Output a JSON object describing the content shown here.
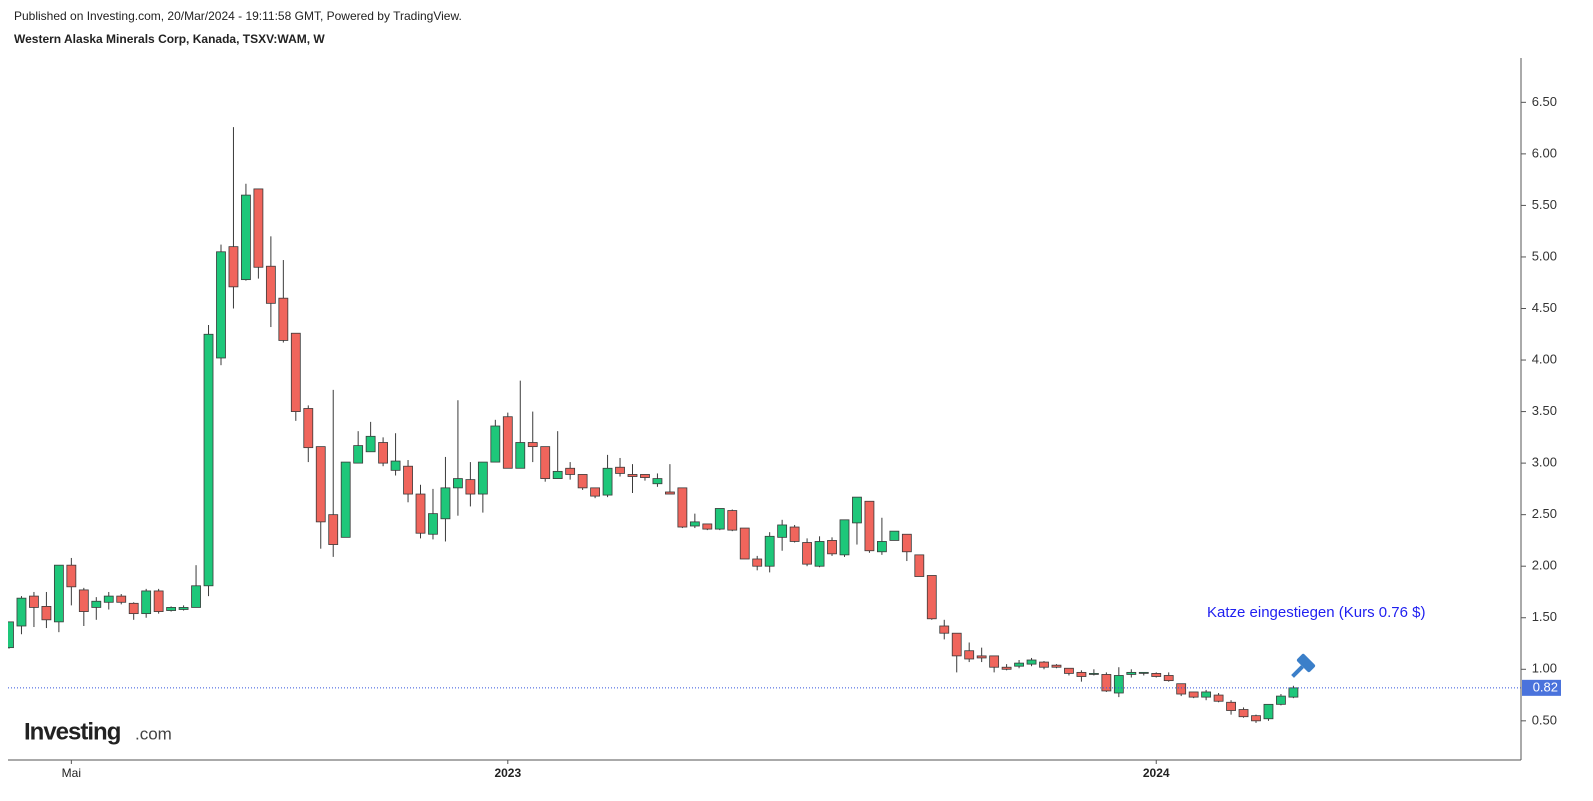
{
  "published": "Published on Investing.com, 20/Mar/2024 - 19:11:58 GMT, Powered by TradingView.",
  "logo": {
    "name": "Investing",
    "suffix": ".com"
  },
  "chart_data": {
    "type": "candlestick",
    "title": "Western Alaska Minerals Corp, Kanada, TSXV:WAM, W",
    "categories": [
      null,
      null,
      null,
      null,
      null,
      "Mai",
      null,
      null,
      null,
      null,
      null,
      null,
      null,
      null,
      null,
      null,
      null,
      null,
      null,
      null,
      null,
      null,
      null,
      null,
      null,
      null,
      null,
      null,
      null,
      null,
      null,
      null,
      null,
      null,
      null,
      null,
      null,
      null,
      null,
      null,
      "2023",
      null,
      null,
      null,
      null,
      null,
      null,
      null,
      null,
      null,
      null,
      null,
      null,
      null,
      null,
      null,
      null,
      null,
      null,
      null,
      null,
      null,
      null,
      null,
      null,
      null,
      null,
      null,
      null,
      null,
      null,
      null,
      null,
      null,
      null,
      null,
      null,
      null,
      null,
      null,
      null,
      null,
      null,
      null,
      null,
      null,
      null,
      null,
      null,
      null,
      null,
      null,
      "2024",
      null,
      null,
      null,
      null,
      null,
      null,
      null,
      null,
      null,
      null,
      null
    ],
    "open": [
      1.21,
      1.42,
      1.71,
      1.61,
      1.46,
      2.01,
      1.77,
      1.6,
      1.65,
      1.71,
      1.64,
      1.54,
      1.76,
      1.57,
      1.58,
      1.6,
      1.81,
      4.02,
      5.1,
      4.78,
      5.66,
      4.91,
      4.6,
      4.26,
      3.53,
      3.16,
      2.5,
      2.28,
      3.0,
      3.11,
      3.2,
      2.93,
      2.97,
      2.7,
      2.31,
      2.46,
      2.76,
      2.84,
      2.7,
      3.01,
      3.45,
      2.95,
      3.2,
      3.16,
      2.85,
      2.95,
      2.89,
      2.76,
      2.69,
      2.96,
      2.89,
      2.89,
      2.8,
      2.72,
      2.76,
      2.39,
      2.41,
      2.36,
      2.54,
      2.37,
      2.07,
      2.0,
      2.28,
      2.38,
      2.23,
      2.0,
      2.25,
      2.11,
      2.42,
      2.63,
      2.14,
      2.25,
      2.31,
      2.11,
      1.91,
      1.42,
      1.35,
      1.18,
      1.13,
      1.13,
      1.02,
      1.03,
      1.05,
      1.07,
      1.04,
      1.01,
      0.97,
      0.95,
      0.95,
      0.77,
      0.95,
      0.96,
      0.96,
      0.94,
      0.86,
      0.78,
      0.73,
      0.75,
      0.68,
      0.61,
      0.55,
      0.52,
      0.66,
      0.73
    ],
    "high": [
      1.46,
      1.71,
      1.75,
      1.75,
      2.01,
      2.08,
      1.79,
      1.7,
      1.75,
      1.73,
      1.65,
      1.78,
      1.78,
      1.61,
      1.62,
      2.01,
      4.34,
      5.12,
      6.26,
      5.71,
      5.66,
      5.2,
      4.97,
      4.26,
      3.56,
      3.16,
      3.71,
      3.01,
      3.31,
      3.4,
      3.25,
      3.29,
      3.03,
      2.79,
      2.75,
      3.06,
      3.61,
      3.01,
      3.01,
      3.42,
      3.49,
      3.8,
      3.5,
      3.16,
      3.31,
      3.01,
      2.89,
      2.76,
      3.08,
      3.05,
      2.99,
      2.89,
      2.9,
      2.99,
      2.76,
      2.51,
      2.41,
      2.56,
      2.55,
      2.37,
      2.1,
      2.33,
      2.45,
      2.4,
      2.27,
      2.29,
      2.28,
      2.45,
      2.67,
      2.63,
      2.47,
      2.34,
      2.31,
      2.11,
      1.91,
      1.48,
      1.35,
      1.26,
      1.21,
      1.13,
      1.05,
      1.09,
      1.11,
      1.08,
      1.05,
      1.01,
      0.99,
      1.0,
      0.97,
      1.02,
      1.0,
      0.97,
      0.97,
      0.97,
      0.86,
      0.78,
      0.8,
      0.77,
      0.7,
      0.63,
      0.56,
      0.66,
      0.76,
      0.84
    ],
    "low": [
      1.2,
      1.34,
      1.41,
      1.4,
      1.36,
      1.62,
      1.42,
      1.48,
      1.58,
      1.63,
      1.48,
      1.5,
      1.54,
      1.56,
      1.57,
      1.6,
      1.71,
      3.95,
      4.5,
      4.77,
      4.79,
      4.32,
      4.17,
      3.41,
      3.01,
      2.17,
      2.09,
      2.28,
      3.0,
      3.11,
      2.97,
      2.88,
      2.62,
      2.27,
      2.26,
      2.24,
      2.49,
      2.58,
      2.52,
      3.01,
      2.95,
      2.95,
      3.01,
      2.82,
      2.85,
      2.84,
      2.74,
      2.66,
      2.67,
      2.87,
      2.71,
      2.83,
      2.77,
      2.7,
      2.37,
      2.37,
      2.35,
      2.35,
      2.34,
      2.07,
      1.96,
      1.94,
      2.15,
      2.23,
      2.0,
      1.99,
      2.1,
      2.09,
      2.21,
      2.13,
      2.11,
      2.25,
      2.05,
      1.9,
      1.48,
      1.29,
      0.97,
      1.07,
      1.07,
      0.97,
      0.99,
      1.01,
      1.03,
      1.0,
      1.01,
      0.94,
      0.88,
      0.94,
      0.78,
      0.73,
      0.92,
      0.94,
      0.92,
      0.88,
      0.74,
      0.72,
      0.7,
      0.68,
      0.56,
      0.53,
      0.48,
      0.5,
      0.65,
      0.72
    ],
    "close": [
      1.46,
      1.69,
      1.6,
      1.48,
      2.01,
      1.8,
      1.56,
      1.66,
      1.71,
      1.65,
      1.54,
      1.76,
      1.56,
      1.6,
      1.6,
      1.81,
      4.25,
      5.05,
      4.71,
      5.6,
      4.9,
      4.55,
      4.19,
      3.5,
      3.15,
      2.43,
      2.21,
      3.01,
      3.17,
      3.26,
      3.0,
      3.02,
      2.7,
      2.32,
      2.51,
      2.76,
      2.85,
      2.7,
      3.01,
      3.36,
      2.95,
      3.2,
      3.16,
      2.85,
      2.92,
      2.89,
      2.76,
      2.68,
      2.95,
      2.9,
      2.87,
      2.86,
      2.85,
      2.7,
      2.38,
      2.43,
      2.36,
      2.56,
      2.35,
      2.07,
      2.0,
      2.29,
      2.4,
      2.24,
      2.02,
      2.24,
      2.12,
      2.45,
      2.67,
      2.15,
      2.24,
      2.34,
      2.14,
      1.9,
      1.49,
      1.35,
      1.13,
      1.1,
      1.11,
      1.02,
      1.0,
      1.06,
      1.09,
      1.02,
      1.02,
      0.96,
      0.93,
      0.96,
      0.79,
      0.94,
      0.97,
      0.97,
      0.93,
      0.89,
      0.76,
      0.73,
      0.78,
      0.69,
      0.6,
      0.54,
      0.5,
      0.66,
      0.74,
      0.82
    ],
    "up_color": "#1ec77a",
    "down_color": "#f0655c",
    "ylim": [
      0.12,
      6.93
    ],
    "yticks": [
      {
        "value": 0.5,
        "label": "0.50"
      },
      {
        "value": 1,
        "label": "1.00"
      },
      {
        "value": 1.5,
        "label": "1.50"
      },
      {
        "value": 2,
        "label": "2.00"
      },
      {
        "value": 2.5,
        "label": "2.50"
      },
      {
        "value": 3,
        "label": "3.00"
      },
      {
        "value": 3.5,
        "label": "3.50"
      },
      {
        "value": 4,
        "label": "4.00"
      },
      {
        "value": 4.5,
        "label": "4.50"
      },
      {
        "value": 5,
        "label": "5.00"
      },
      {
        "value": 5.5,
        "label": "5.50"
      },
      {
        "value": 6,
        "label": "6.00"
      },
      {
        "value": 6.5,
        "label": "6.50"
      }
    ],
    "last_price": {
      "value": 0.82,
      "label": "0.82"
    },
    "annotation": "Katze eingestiegen (Kurs 0.76 $)"
  }
}
